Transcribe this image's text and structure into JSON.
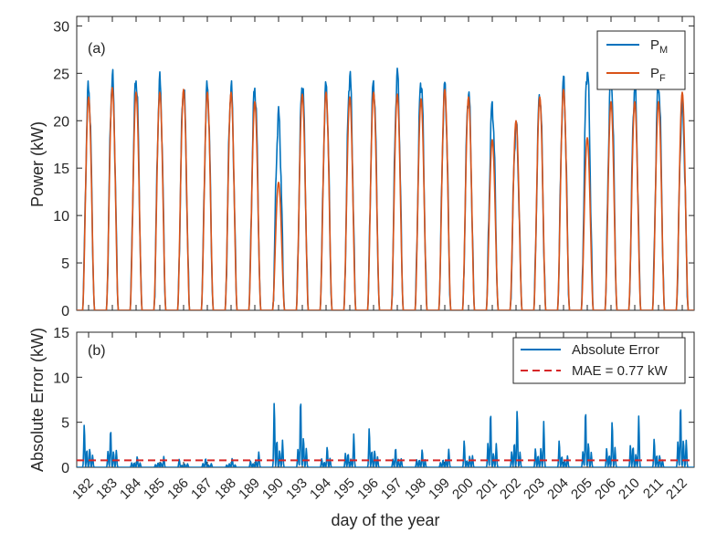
{
  "chart_data": [
    {
      "panel_label": "(a)",
      "type": "line",
      "ylabel": "Power (kW)",
      "ylim": [
        0,
        31
      ],
      "yticks": [
        0,
        5,
        10,
        15,
        20,
        25,
        30
      ],
      "grid": false,
      "legend_placement": "top-right",
      "legend": [
        {
          "base": "P",
          "sub": "M",
          "color": "#0072BD"
        },
        {
          "base": "P",
          "sub": "F",
          "color": "#D95319"
        }
      ],
      "days": [
        "182",
        "183",
        "184",
        "185",
        "186",
        "187",
        "188",
        "189",
        "190",
        "193",
        "194",
        "195",
        "196",
        "197",
        "198",
        "199",
        "200",
        "201",
        "202",
        "203",
        "204",
        "205",
        "206",
        "210",
        "211",
        "212"
      ],
      "series": [
        {
          "sub": "M",
          "color": "#0072BD",
          "daily_peak": [
            23.5,
            24.5,
            24.5,
            24.0,
            23.5,
            23.5,
            23.5,
            23.5,
            20.5,
            24.0,
            23.5,
            24.8,
            24.0,
            24.8,
            24.3,
            23.5,
            23.0,
            21.5,
            19.5,
            22.8,
            24.0,
            25.5,
            25.0,
            23.5,
            24.0,
            21.5
          ]
        },
        {
          "sub": "F",
          "color": "#D95319",
          "daily_peak": [
            22.5,
            23.5,
            23.0,
            23.0,
            23.3,
            23.0,
            23.0,
            22.0,
            13.5,
            22.8,
            23.0,
            22.5,
            23.0,
            22.8,
            22.3,
            23.3,
            22.5,
            18.0,
            20.0,
            22.5,
            23.3,
            18.2,
            22.0,
            22.0,
            22.0,
            23.0
          ]
        }
      ]
    },
    {
      "panel_label": "(b)",
      "type": "line",
      "ylabel": "Absolute Error (kW)",
      "ylim": [
        0,
        15
      ],
      "yticks": [
        0,
        5,
        10,
        15
      ],
      "grid": false,
      "legend_placement": "top-right",
      "xlabel": "day of the year",
      "series": [
        {
          "name": "Absolute Error",
          "color": "#0072BD",
          "style": "solid",
          "daily_peak": [
            4.8,
            4.3,
            1.2,
            1.2,
            0.9,
            1.0,
            1.0,
            1.7,
            7.3,
            7.8,
            2.3,
            3.7,
            4.4,
            2.2,
            2.0,
            2.0,
            3.0,
            6.3,
            6.5,
            5.1,
            3.0,
            6.5,
            5.2,
            5.7,
            3.2,
            7.1
          ]
        },
        {
          "name": "MAE = 0.77 kW",
          "color": "#D62728",
          "style": "dashed",
          "value": 0.77
        }
      ]
    }
  ]
}
